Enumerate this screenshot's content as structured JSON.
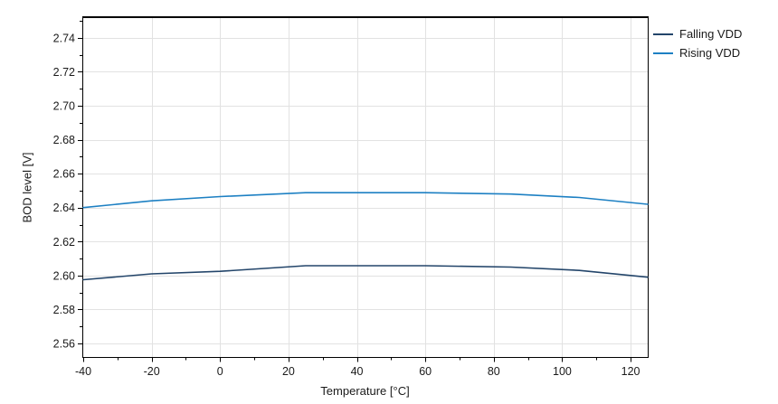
{
  "chart_data": {
    "type": "line",
    "title": "",
    "xlabel": "Temperature [°C]",
    "ylabel": "BOD level [V]",
    "xlim": [
      -40,
      125
    ],
    "ylim": [
      2.552,
      2.7522
    ],
    "x": [
      -40,
      -20,
      0,
      25,
      60,
      85,
      105,
      125
    ],
    "series": [
      {
        "name": "Falling VDD",
        "color": "#23456a",
        "values": [
          2.5975,
          2.601,
          2.6025,
          2.6058,
          2.6058,
          2.605,
          2.603,
          2.599
        ]
      },
      {
        "name": "Rising VDD",
        "color": "#1d80c3",
        "values": [
          2.64,
          2.644,
          2.6465,
          2.6488,
          2.6488,
          2.648,
          2.646,
          2.642
        ]
      }
    ],
    "x_major_ticks": [
      -40,
      -20,
      0,
      20,
      40,
      60,
      80,
      100,
      120
    ],
    "x_minor_ticks": [
      -30,
      -10,
      10,
      30,
      50,
      70,
      90,
      110
    ],
    "y_major_ticks": [
      2.56,
      2.58,
      2.6,
      2.62,
      2.64,
      2.66,
      2.68,
      2.7,
      2.72,
      2.74
    ],
    "y_minor_ticks": [
      2.57,
      2.59,
      2.61,
      2.63,
      2.65,
      2.67,
      2.69,
      2.71,
      2.73,
      2.75
    ],
    "grid": true,
    "legend_position": "top-right-outside",
    "colors": {
      "grid": "#e2e2e2",
      "axis": "#000000",
      "text": "#1a1a1a",
      "background": "#ffffff"
    }
  }
}
